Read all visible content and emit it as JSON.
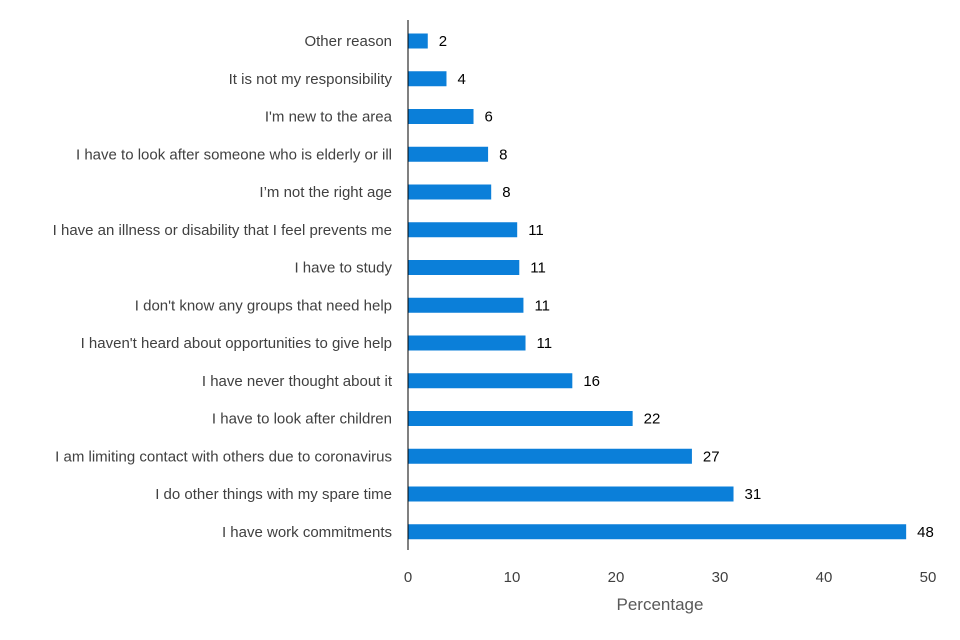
{
  "chart_data": {
    "type": "bar",
    "orientation": "horizontal",
    "title": "",
    "xlabel": "Percentage",
    "ylabel": "",
    "xlim": [
      0,
      50
    ],
    "xticks": [
      0,
      10,
      20,
      30,
      40,
      50
    ],
    "grid": false,
    "bar_color": "#0b7fd9",
    "categories": [
      "Other reason",
      "It is not my responsibility",
      "I'm new to the area",
      "I have to look after someone who is elderly or ill",
      "I’m not the right age",
      "I have an illness or disability that I feel prevents me",
      "I have to study",
      "I don't know any groups that need help",
      "I haven't heard about opportunities to give help",
      "I have never thought about it",
      "I have to look after children",
      "I am limiting contact with others due to coronavirus",
      "I do other things with my spare time",
      "I have work commitments"
    ],
    "values": [
      2,
      4,
      6,
      8,
      8,
      11,
      11,
      11,
      11,
      16,
      22,
      27,
      31,
      48
    ],
    "bar_values": [
      1.9,
      3.7,
      6.3,
      7.7,
      8.0,
      10.5,
      10.7,
      11.1,
      11.3,
      15.8,
      21.6,
      27.3,
      31.3,
      47.9
    ]
  }
}
